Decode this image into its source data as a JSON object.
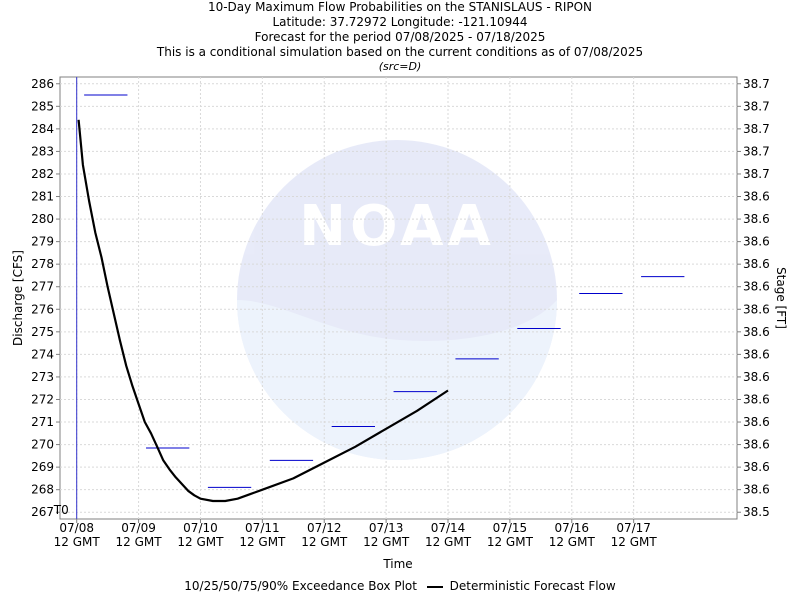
{
  "chart_data": {
    "type": "line",
    "title": "10-Day Maximum Flow Probabilities on the STANISLAUS - RIPON",
    "subtitle_lines": [
      "Latitude: 37.72972 Longitude: -121.10944",
      "Forecast for the period 07/08/2025 - 07/18/2025",
      "This is a conditional simulation based on the current conditions as of 07/08/2025"
    ],
    "source_note": "(src=D)",
    "xlabel": "Time",
    "ylabel": "Discharge [CFS]",
    "ylabel_right": "Stage [FT]",
    "ylim": [
      266.7,
      286.3
    ],
    "xlim": [
      -0.27,
      10.67
    ],
    "y_ticks": [
      267,
      268,
      269,
      270,
      271,
      272,
      273,
      274,
      275,
      276,
      277,
      278,
      279,
      280,
      281,
      282,
      283,
      284,
      285,
      286
    ],
    "right_tick_labels": [
      "38.5",
      "38.6",
      "38.6",
      "38.6",
      "38.6",
      "38.6",
      "38.6",
      "38.6",
      "38.6",
      "38.6",
      "38.6",
      "38.6",
      "38.6",
      "38.6",
      "38.6",
      "38.7",
      "38.7",
      "38.7",
      "38.7",
      "38.7"
    ],
    "x_tick_labels": [
      [
        "07/08",
        "12 GMT"
      ],
      [
        "07/09",
        "12 GMT"
      ],
      [
        "07/10",
        "12 GMT"
      ],
      [
        "07/11",
        "12 GMT"
      ],
      [
        "07/12",
        "12 GMT"
      ],
      [
        "07/13",
        "12 GMT"
      ],
      [
        "07/14",
        "12 GMT"
      ],
      [
        "07/15",
        "12 GMT"
      ],
      [
        "07/16",
        "12 GMT"
      ],
      [
        "07/17",
        "12 GMT"
      ]
    ],
    "t0_label": "T0",
    "grid": true,
    "legend_placement": "bottom",
    "series": [
      {
        "name": "Deterministic Forecast Flow",
        "color": "#000000",
        "x": [
          0.03,
          0.1,
          0.2,
          0.3,
          0.4,
          0.5,
          0.6,
          0.7,
          0.8,
          0.9,
          1.0,
          1.1,
          1.2,
          1.3,
          1.4,
          1.5,
          1.6,
          1.7,
          1.8,
          1.9,
          2.0,
          2.2,
          2.4,
          2.6,
          2.8,
          3.0,
          3.5,
          4.0,
          4.5,
          5.0,
          5.5,
          6.0
        ],
        "y": [
          284.4,
          282.4,
          280.8,
          279.4,
          278.3,
          277.0,
          275.8,
          274.6,
          273.5,
          272.6,
          271.8,
          271.0,
          270.5,
          269.9,
          269.3,
          268.9,
          268.55,
          268.25,
          267.95,
          267.75,
          267.6,
          267.5,
          267.5,
          267.6,
          267.8,
          268.0,
          268.5,
          269.2,
          269.9,
          270.7,
          271.5,
          272.4
        ]
      }
    ],
    "box_plot": {
      "name": "10/25/50/75/90% Exceedance Box Plot",
      "color": "#0000cc",
      "segments": [
        {
          "x": [
            0.12,
            0.82
          ],
          "y": 285.5
        },
        {
          "x": [
            1.12,
            1.82
          ],
          "y": 269.85
        },
        {
          "x": [
            2.12,
            2.82
          ],
          "y": 268.1
        },
        {
          "x": [
            3.12,
            3.82
          ],
          "y": 269.3
        },
        {
          "x": [
            4.12,
            4.82
          ],
          "y": 270.8
        },
        {
          "x": [
            5.12,
            5.82
          ],
          "y": 272.35
        },
        {
          "x": [
            6.12,
            6.82
          ],
          "y": 273.8
        },
        {
          "x": [
            7.12,
            7.82
          ],
          "y": 275.15
        },
        {
          "x": [
            8.12,
            8.82
          ],
          "y": 276.7
        },
        {
          "x": [
            9.12,
            9.82
          ],
          "y": 277.45
        }
      ]
    }
  }
}
